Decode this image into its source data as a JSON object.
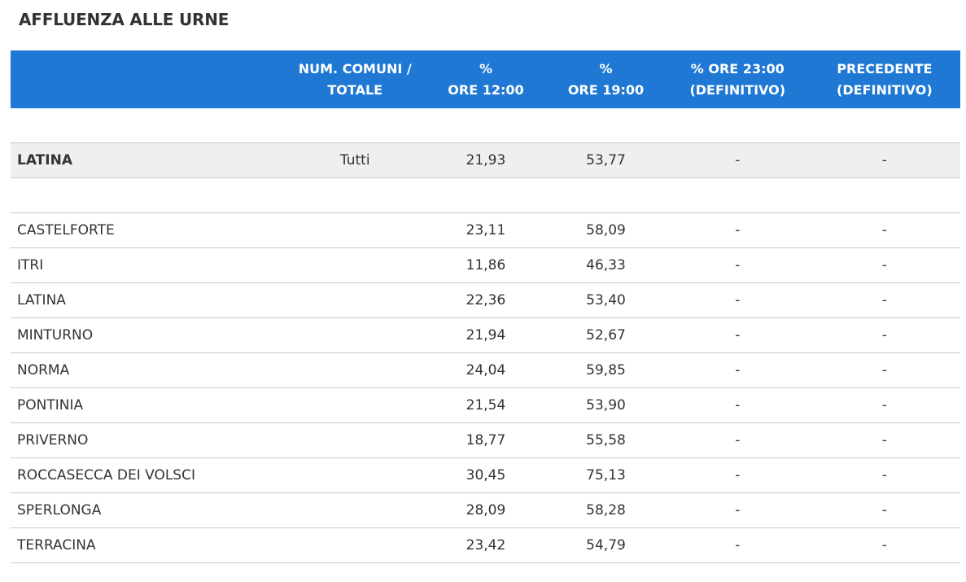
{
  "page": {
    "title": "AFFLUENZA ALLE URNE"
  },
  "table": {
    "headers": [
      {
        "line1": "",
        "line2": ""
      },
      {
        "line1": "NUM. COMUNI /",
        "line2": "TOTALE"
      },
      {
        "line1": "%",
        "line2": "ORE 12:00"
      },
      {
        "line1": "%",
        "line2": "ORE 19:00"
      },
      {
        "line1": "% ORE 23:00",
        "line2": "(DEFINITIVO)"
      },
      {
        "line1": "PRECEDENTE",
        "line2": "(DEFINITIVO)"
      }
    ],
    "total": {
      "name": "LATINA",
      "comuni": "Tutti",
      "ore12": "21,93",
      "ore19": "53,77",
      "ore23": "-",
      "precedente": "-"
    },
    "rows": [
      {
        "name": "CASTELFORTE",
        "comuni": "",
        "ore12": "23,11",
        "ore19": "58,09",
        "ore23": "-",
        "precedente": "-"
      },
      {
        "name": "ITRI",
        "comuni": "",
        "ore12": "11,86",
        "ore19": "46,33",
        "ore23": "-",
        "precedente": "-"
      },
      {
        "name": "LATINA",
        "comuni": "",
        "ore12": "22,36",
        "ore19": "53,40",
        "ore23": "-",
        "precedente": "-"
      },
      {
        "name": "MINTURNO",
        "comuni": "",
        "ore12": "21,94",
        "ore19": "52,67",
        "ore23": "-",
        "precedente": "-"
      },
      {
        "name": "NORMA",
        "comuni": "",
        "ore12": "24,04",
        "ore19": "59,85",
        "ore23": "-",
        "precedente": "-"
      },
      {
        "name": "PONTINIA",
        "comuni": "",
        "ore12": "21,54",
        "ore19": "53,90",
        "ore23": "-",
        "precedente": "-"
      },
      {
        "name": "PRIVERNO",
        "comuni": "",
        "ore12": "18,77",
        "ore19": "55,58",
        "ore23": "-",
        "precedente": "-"
      },
      {
        "name": "ROCCASECCA DEI VOLSCI",
        "comuni": "",
        "ore12": "30,45",
        "ore19": "75,13",
        "ore23": "-",
        "precedente": "-"
      },
      {
        "name": "SPERLONGA",
        "comuni": "",
        "ore12": "28,09",
        "ore19": "58,28",
        "ore23": "-",
        "precedente": "-"
      },
      {
        "name": "TERRACINA",
        "comuni": "",
        "ore12": "23,42",
        "ore19": "54,79",
        "ore23": "-",
        "precedente": "-"
      }
    ]
  }
}
